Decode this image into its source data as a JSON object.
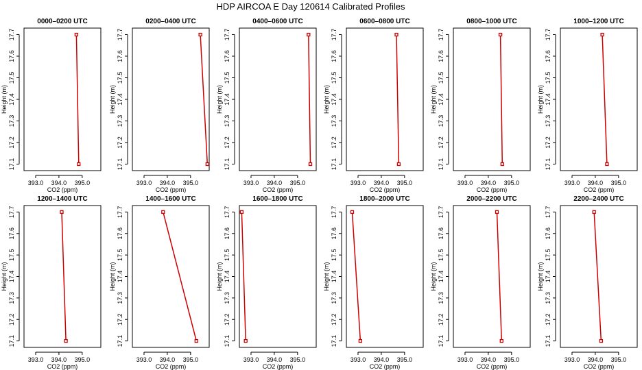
{
  "figure_title": "HDP AIRCOA E  Day 120614  Calibrated Profiles",
  "chart_data": [
    {
      "type": "line",
      "title": "0000–0200 UTC",
      "xlabel": "CO2 (ppm)",
      "ylabel": "Height (m)",
      "xlim": [
        392.5,
        395.8
      ],
      "ylim": [
        17.07,
        17.73
      ],
      "xticks": [
        393.0,
        394.0,
        395.0
      ],
      "xtick_labels": [
        "393.0",
        "394.0",
        "395.0"
      ],
      "yticks": [
        17.1,
        17.2,
        17.3,
        17.4,
        17.5,
        17.6,
        17.7
      ],
      "ytick_labels": [
        "17.1",
        "17.2",
        "17.3",
        "17.4",
        "17.5",
        "17.6",
        "17.7"
      ],
      "series": [
        {
          "x": [
            394.85,
            394.75
          ],
          "y": [
            17.1,
            17.7
          ]
        }
      ]
    },
    {
      "type": "line",
      "title": "0200–0400 UTC",
      "xlabel": "CO2 (ppm)",
      "ylabel": "Height (m)",
      "xlim": [
        392.5,
        395.8
      ],
      "ylim": [
        17.07,
        17.73
      ],
      "xticks": [
        393.0,
        394.0,
        395.0
      ],
      "xtick_labels": [
        "393.0",
        "394.0",
        "395.0"
      ],
      "yticks": [
        17.1,
        17.2,
        17.3,
        17.4,
        17.5,
        17.6,
        17.7
      ],
      "ytick_labels": [
        "17.1",
        "17.2",
        "17.3",
        "17.4",
        "17.5",
        "17.6",
        "17.7"
      ],
      "series": [
        {
          "x": [
            395.72,
            395.42
          ],
          "y": [
            17.1,
            17.7
          ]
        }
      ]
    },
    {
      "type": "line",
      "title": "0400–0600 UTC",
      "xlabel": "CO2 (ppm)",
      "ylabel": "Height (m)",
      "xlim": [
        392.5,
        395.8
      ],
      "ylim": [
        17.07,
        17.73
      ],
      "xticks": [
        393.0,
        394.0,
        395.0
      ],
      "xtick_labels": [
        "393.0",
        "394.0",
        "395.0"
      ],
      "yticks": [
        17.1,
        17.2,
        17.3,
        17.4,
        17.5,
        17.6,
        17.7
      ],
      "ytick_labels": [
        "17.1",
        "17.2",
        "17.3",
        "17.4",
        "17.5",
        "17.6",
        "17.7"
      ],
      "series": [
        {
          "x": [
            395.55,
            395.47
          ],
          "y": [
            17.1,
            17.7
          ]
        }
      ]
    },
    {
      "type": "line",
      "title": "0600–0800 UTC",
      "xlabel": "CO2 (ppm)",
      "ylabel": "Height (m)",
      "xlim": [
        392.5,
        395.8
      ],
      "ylim": [
        17.07,
        17.73
      ],
      "xticks": [
        393.0,
        394.0,
        395.0
      ],
      "xtick_labels": [
        "393.0",
        "394.0",
        "395.0"
      ],
      "yticks": [
        17.1,
        17.2,
        17.3,
        17.4,
        17.5,
        17.6,
        17.7
      ],
      "ytick_labels": [
        "17.1",
        "17.2",
        "17.3",
        "17.4",
        "17.5",
        "17.6",
        "17.7"
      ],
      "series": [
        {
          "x": [
            394.75,
            394.65
          ],
          "y": [
            17.1,
            17.7
          ]
        }
      ]
    },
    {
      "type": "line",
      "title": "0800–1000 UTC",
      "xlabel": "CO2 (ppm)",
      "ylabel": "Height (m)",
      "xlim": [
        392.5,
        395.8
      ],
      "ylim": [
        17.07,
        17.73
      ],
      "xticks": [
        393.0,
        394.0,
        395.0
      ],
      "xtick_labels": [
        "393.0",
        "394.0",
        "395.0"
      ],
      "yticks": [
        17.1,
        17.2,
        17.3,
        17.4,
        17.5,
        17.6,
        17.7
      ],
      "ytick_labels": [
        "17.1",
        "17.2",
        "17.3",
        "17.4",
        "17.5",
        "17.6",
        "17.7"
      ],
      "series": [
        {
          "x": [
            394.6,
            394.52
          ],
          "y": [
            17.1,
            17.7
          ]
        }
      ]
    },
    {
      "type": "line",
      "title": "1000–1200 UTC",
      "xlabel": "CO2 (ppm)",
      "ylabel": "Height (m)",
      "xlim": [
        392.5,
        395.8
      ],
      "ylim": [
        17.07,
        17.73
      ],
      "xticks": [
        393.0,
        394.0,
        395.0
      ],
      "xtick_labels": [
        "393.0",
        "394.0",
        "395.0"
      ],
      "yticks": [
        17.1,
        17.2,
        17.3,
        17.4,
        17.5,
        17.6,
        17.7
      ],
      "ytick_labels": [
        "17.1",
        "17.2",
        "17.3",
        "17.4",
        "17.5",
        "17.6",
        "17.7"
      ],
      "series": [
        {
          "x": [
            394.5,
            394.3
          ],
          "y": [
            17.1,
            17.7
          ]
        }
      ]
    },
    {
      "type": "line",
      "title": "1200–1400 UTC",
      "xlabel": "CO2 (ppm)",
      "ylabel": "Height (m)",
      "xlim": [
        392.5,
        395.8
      ],
      "ylim": [
        17.07,
        17.73
      ],
      "xticks": [
        393.0,
        394.0,
        395.0
      ],
      "xtick_labels": [
        "393.0",
        "394.0",
        "395.0"
      ],
      "yticks": [
        17.1,
        17.2,
        17.3,
        17.4,
        17.5,
        17.6,
        17.7
      ],
      "ytick_labels": [
        "17.1",
        "17.2",
        "17.3",
        "17.4",
        "17.5",
        "17.6",
        "17.7"
      ],
      "series": [
        {
          "x": [
            394.3,
            394.12
          ],
          "y": [
            17.1,
            17.7
          ]
        }
      ]
    },
    {
      "type": "line",
      "title": "1400–1600 UTC",
      "xlabel": "CO2 (ppm)",
      "ylabel": "Height (m)",
      "xlim": [
        392.5,
        395.8
      ],
      "ylim": [
        17.07,
        17.73
      ],
      "xticks": [
        393.0,
        394.0,
        395.0
      ],
      "xtick_labels": [
        "393.0",
        "394.0",
        "395.0"
      ],
      "yticks": [
        17.1,
        17.2,
        17.3,
        17.4,
        17.5,
        17.6,
        17.7
      ],
      "ytick_labels": [
        "17.1",
        "17.2",
        "17.3",
        "17.4",
        "17.5",
        "17.6",
        "17.7"
      ],
      "series": [
        {
          "x": [
            395.25,
            393.82
          ],
          "y": [
            17.1,
            17.7
          ]
        }
      ]
    },
    {
      "type": "line",
      "title": "1600–1800 UTC",
      "xlabel": "CO2 (ppm)",
      "ylabel": "Height (m)",
      "xlim": [
        392.5,
        395.8
      ],
      "ylim": [
        17.07,
        17.73
      ],
      "xticks": [
        393.0,
        394.0,
        395.0
      ],
      "xtick_labels": [
        "393.0",
        "394.0",
        "395.0"
      ],
      "yticks": [
        17.1,
        17.2,
        17.3,
        17.4,
        17.5,
        17.6,
        17.7
      ],
      "ytick_labels": [
        "17.1",
        "17.2",
        "17.3",
        "17.4",
        "17.5",
        "17.6",
        "17.7"
      ],
      "series": [
        {
          "x": [
            392.77,
            392.6
          ],
          "y": [
            17.1,
            17.7
          ]
        }
      ]
    },
    {
      "type": "line",
      "title": "1800–2000 UTC",
      "xlabel": "CO2 (ppm)",
      "ylabel": "Height (m)",
      "xlim": [
        392.5,
        395.8
      ],
      "ylim": [
        17.07,
        17.73
      ],
      "xticks": [
        393.0,
        394.0,
        395.0
      ],
      "xtick_labels": [
        "393.0",
        "394.0",
        "395.0"
      ],
      "yticks": [
        17.1,
        17.2,
        17.3,
        17.4,
        17.5,
        17.6,
        17.7
      ],
      "ytick_labels": [
        "17.1",
        "17.2",
        "17.3",
        "17.4",
        "17.5",
        "17.6",
        "17.7"
      ],
      "series": [
        {
          "x": [
            393.1,
            392.75
          ],
          "y": [
            17.1,
            17.7
          ]
        }
      ]
    },
    {
      "type": "line",
      "title": "2000–2200 UTC",
      "xlabel": "CO2 (ppm)",
      "ylabel": "Height (m)",
      "xlim": [
        392.5,
        395.8
      ],
      "ylim": [
        17.07,
        17.73
      ],
      "xticks": [
        393.0,
        394.0,
        395.0
      ],
      "xtick_labels": [
        "393.0",
        "394.0",
        "395.0"
      ],
      "yticks": [
        17.1,
        17.2,
        17.3,
        17.4,
        17.5,
        17.6,
        17.7
      ],
      "ytick_labels": [
        "17.1",
        "17.2",
        "17.3",
        "17.4",
        "17.5",
        "17.6",
        "17.7"
      ],
      "series": [
        {
          "x": [
            394.57,
            394.37
          ],
          "y": [
            17.1,
            17.7
          ]
        }
      ]
    },
    {
      "type": "line",
      "title": "2200–2400 UTC",
      "xlabel": "CO2 (ppm)",
      "ylabel": "Height (m)",
      "xlim": [
        392.5,
        395.8
      ],
      "ylim": [
        17.07,
        17.73
      ],
      "xticks": [
        393.0,
        394.0,
        395.0
      ],
      "xtick_labels": [
        "393.0",
        "394.0",
        "395.0"
      ],
      "yticks": [
        17.1,
        17.2,
        17.3,
        17.4,
        17.5,
        17.6,
        17.7
      ],
      "ytick_labels": [
        "17.1",
        "17.2",
        "17.3",
        "17.4",
        "17.5",
        "17.6",
        "17.7"
      ],
      "series": [
        {
          "x": [
            394.25,
            393.95
          ],
          "y": [
            17.1,
            17.7
          ]
        }
      ]
    }
  ],
  "colors": {
    "line": "#cc0000",
    "marker": "#cc0000",
    "axis": "#000000"
  }
}
